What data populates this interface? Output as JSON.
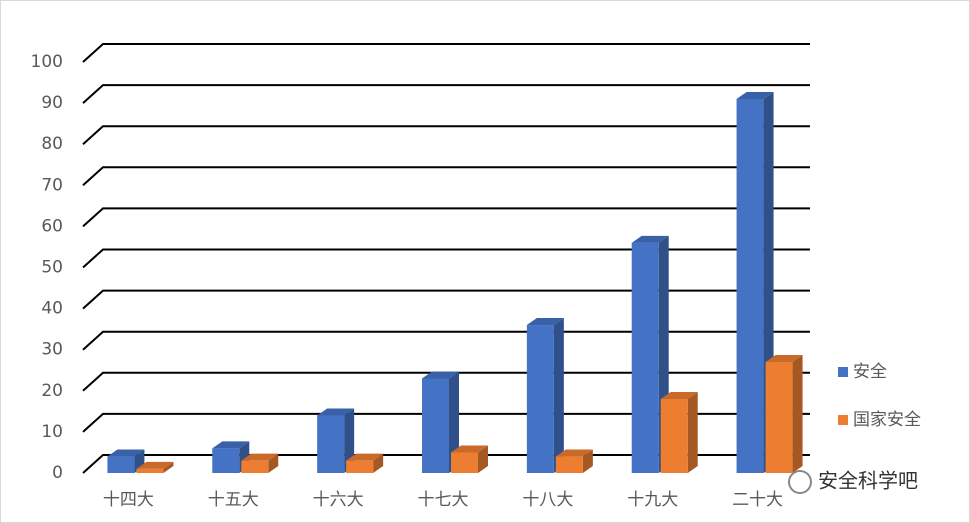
{
  "chart_data": {
    "type": "bar3d",
    "categories": [
      "十四大",
      "十五大",
      "十六大",
      "十七大",
      "十八大",
      "十九大",
      "二十大"
    ],
    "series": [
      {
        "name": "安全",
        "color": "#4472c4",
        "values": [
          4,
          6,
          14,
          23,
          36,
          56,
          91
        ]
      },
      {
        "name": "国家安全",
        "color": "#ed7d31",
        "values": [
          1,
          3,
          3,
          5,
          4,
          18,
          27
        ]
      }
    ],
    "ylim": [
      0,
      100
    ],
    "yticks": [
      0,
      10,
      20,
      30,
      40,
      50,
      60,
      70,
      80,
      90,
      100
    ],
    "grid": true,
    "legend": "right",
    "watermark": "安全科学吧"
  }
}
